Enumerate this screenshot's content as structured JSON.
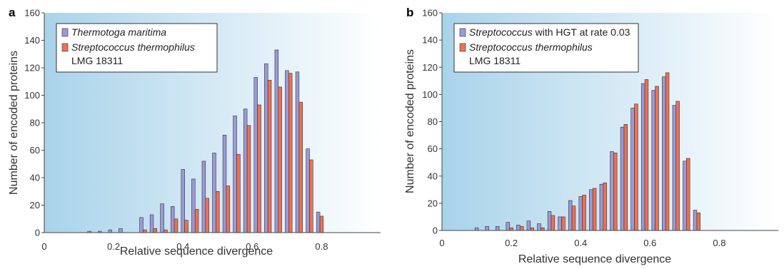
{
  "chart_data": [
    {
      "panel_label": "a",
      "type": "bar",
      "xlabel": "Relative sequence divergence",
      "ylabel": "Number of encoded proteins",
      "ylim": [
        0,
        160
      ],
      "xlim": [
        0,
        0.97
      ],
      "xticks": [
        "0",
        "0.2",
        "0.4",
        "0.6",
        "0.8"
      ],
      "yticks": [
        "0",
        "20",
        "40",
        "60",
        "80",
        "100",
        "120",
        "140",
        "160"
      ],
      "legend_position": "top-left",
      "colors": {
        "series1": "#9a9ad8",
        "series2": "#f07050"
      },
      "legend": [
        {
          "name": "Thermotoga maritima",
          "italic": "Thermotoga maritima",
          "rest": "",
          "line2": ""
        },
        {
          "name": "Streptococcus thermophilus LMG 18311",
          "italic": "Streptococcus thermophilus",
          "rest": "",
          "line2": "LMG 18311"
        }
      ],
      "x": [
        0.0,
        0.03,
        0.06,
        0.09,
        0.12,
        0.15,
        0.18,
        0.21,
        0.24,
        0.27,
        0.3,
        0.33,
        0.36,
        0.39,
        0.42,
        0.45,
        0.48,
        0.51,
        0.54,
        0.57,
        0.6,
        0.63,
        0.66,
        0.69,
        0.72,
        0.75,
        0.78,
        0.81,
        0.84,
        0.87,
        0.9,
        0.93,
        0.96
      ],
      "series": [
        {
          "name": "Thermotoga maritima",
          "values": [
            0,
            0,
            0,
            0,
            1,
            1,
            2,
            3,
            0,
            11,
            13,
            21,
            19,
            46,
            39,
            52,
            58,
            71,
            85,
            90,
            113,
            123,
            133,
            118,
            117,
            61,
            15,
            0,
            0,
            0,
            0,
            0,
            0
          ]
        },
        {
          "name": "Streptococcus thermophilus LMG 18311",
          "values": [
            0,
            0,
            0,
            0,
            0,
            0,
            0,
            0,
            0,
            2,
            3,
            2,
            10,
            9,
            17,
            25,
            30,
            34,
            57,
            78,
            93,
            111,
            106,
            116,
            95,
            53,
            12,
            0,
            0,
            0,
            0,
            0,
            0
          ]
        }
      ]
    },
    {
      "panel_label": "b",
      "type": "bar",
      "xlabel": "Relative sequence divergence",
      "ylabel": "Number of encoded proteins",
      "ylim": [
        0,
        160
      ],
      "xlim": [
        0,
        0.97
      ],
      "xticks": [
        "0",
        "0.2",
        "0.4",
        "0.6",
        "0.8"
      ],
      "yticks": [
        "0",
        "20",
        "40",
        "60",
        "80",
        "100",
        "120",
        "140",
        "160"
      ],
      "legend_position": "top-left",
      "colors": {
        "series1": "#9a9ad8",
        "series2": "#f07050"
      },
      "legend": [
        {
          "name": "Streptococcus with HGT at rate 0.03",
          "italic": "Streptococcus",
          "rest": " with HGT at rate 0.03",
          "line2": ""
        },
        {
          "name": "Streptococcus thermophilus LMG 18311",
          "italic": "Streptococcus thermophilus",
          "rest": "",
          "line2": "LMG 18311"
        }
      ],
      "x": [
        0.0,
        0.03,
        0.06,
        0.09,
        0.12,
        0.15,
        0.18,
        0.21,
        0.24,
        0.27,
        0.3,
        0.33,
        0.36,
        0.39,
        0.42,
        0.45,
        0.48,
        0.51,
        0.54,
        0.57,
        0.6,
        0.63,
        0.66,
        0.69,
        0.72,
        0.75,
        0.78,
        0.81,
        0.84,
        0.87,
        0.9,
        0.93,
        0.96
      ],
      "series": [
        {
          "name": "Streptococcus with HGT at rate 0.03",
          "values": [
            0,
            0,
            0,
            2,
            3,
            3,
            6,
            4,
            7,
            5,
            14,
            10,
            22,
            25,
            30,
            34,
            58,
            76,
            90,
            108,
            103,
            113,
            92,
            51,
            15,
            0,
            0,
            0,
            0,
            0,
            0,
            0,
            0
          ]
        },
        {
          "name": "Streptococcus thermophilus LMG 18311",
          "values": [
            0,
            0,
            0,
            0,
            0,
            0,
            2,
            3,
            2,
            2,
            11,
            10,
            18,
            26,
            31,
            35,
            57,
            78,
            93,
            111,
            106,
            116,
            95,
            53,
            13,
            0,
            0,
            0,
            0,
            0,
            0,
            0,
            0
          ]
        }
      ]
    }
  ]
}
